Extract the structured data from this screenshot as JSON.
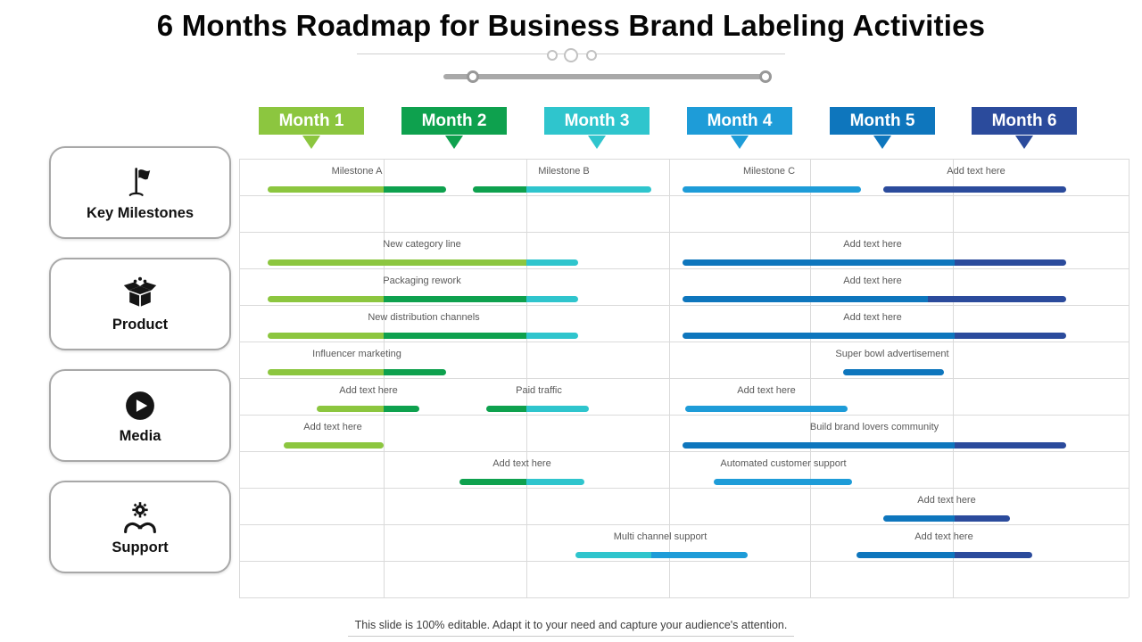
{
  "title": "6 Months Roadmap for Business Brand Labeling Activities",
  "footer": "This slide is 100% editable. Adapt it to your need and capture your audience's attention.",
  "colors": {
    "m1": "#8CC63F",
    "m2": "#0EA14E",
    "m3": "#2FC5CD",
    "m4": "#1E9CD8",
    "m5": "#0E76BD",
    "m6": "#2B4B9C",
    "grid": "#DADADA",
    "label": "#595959"
  },
  "months": [
    {
      "label": "Month 1",
      "color": "m1"
    },
    {
      "label": "Month 2",
      "color": "m2"
    },
    {
      "label": "Month 3",
      "color": "m3"
    },
    {
      "label": "Month 4",
      "color": "m4"
    },
    {
      "label": "Month 5",
      "color": "m5"
    },
    {
      "label": "Month 6",
      "color": "m6"
    }
  ],
  "categories": [
    {
      "label": "Key Milestones",
      "icon": "flag-icon"
    },
    {
      "label": "Product",
      "icon": "box-icon"
    },
    {
      "label": "Media",
      "icon": "play-icon"
    },
    {
      "label": "Support",
      "icon": "support-icon"
    }
  ],
  "rows": [
    {
      "row": 1,
      "bars": [
        {
          "label": "Milestone A",
          "label_x": 400,
          "segments": [
            [
              "m1",
              300,
              430
            ],
            [
              "m2",
              430,
              500
            ]
          ]
        },
        {
          "label": "Milestone B",
          "label_x": 632,
          "segments": [
            [
              "m2",
              530,
              590
            ],
            [
              "m3",
              590,
              730
            ]
          ]
        },
        {
          "label": "Milestone C",
          "label_x": 862,
          "segments": [
            [
              "m4",
              765,
              965
            ]
          ]
        },
        {
          "label": "Add text here",
          "label_x": 1094,
          "segments": [
            [
              "m6",
              990,
              1195
            ]
          ]
        }
      ]
    },
    {
      "row": 3,
      "bars": [
        {
          "label": "New category line",
          "label_x": 473,
          "segments": [
            [
              "m1",
              300,
              590
            ],
            [
              "m3",
              590,
              648
            ]
          ]
        },
        {
          "label": "Add text here",
          "label_x": 978,
          "segments": [
            [
              "m5",
              765,
              1070
            ],
            [
              "m6",
              1070,
              1195
            ]
          ]
        }
      ]
    },
    {
      "row": 4,
      "bars": [
        {
          "label": "Packaging rework",
          "label_x": 473,
          "segments": [
            [
              "m1",
              300,
              430
            ],
            [
              "m2",
              430,
              590
            ],
            [
              "m3",
              590,
              648
            ]
          ]
        },
        {
          "label": "Add text here",
          "label_x": 978,
          "segments": [
            [
              "m5",
              765,
              1040
            ],
            [
              "m6",
              1040,
              1195
            ]
          ]
        }
      ]
    },
    {
      "row": 5,
      "bars": [
        {
          "label": "New distribution channels",
          "label_x": 475,
          "segments": [
            [
              "m1",
              300,
              430
            ],
            [
              "m2",
              430,
              590
            ],
            [
              "m3",
              590,
              648
            ]
          ]
        },
        {
          "label": "Add text here",
          "label_x": 978,
          "segments": [
            [
              "m5",
              765,
              1070
            ],
            [
              "m6",
              1070,
              1195
            ]
          ]
        }
      ]
    },
    {
      "row": 6,
      "bars": [
        {
          "label": "Influencer marketing",
          "label_x": 400,
          "segments": [
            [
              "m1",
              300,
              430
            ],
            [
              "m2",
              430,
              500
            ]
          ]
        },
        {
          "label": "Super bowl advertisement",
          "label_x": 1000,
          "segments": [
            [
              "m5",
              945,
              1058
            ]
          ]
        }
      ]
    },
    {
      "row": 7,
      "bars": [
        {
          "label": "Add text here",
          "label_x": 413,
          "segments": [
            [
              "m1",
              355,
              430
            ],
            [
              "m2",
              430,
              470
            ]
          ]
        },
        {
          "label": "Paid traffic",
          "label_x": 604,
          "segments": [
            [
              "m2",
              545,
              590
            ],
            [
              "m3",
              590,
              660
            ]
          ]
        },
        {
          "label": "Add text here",
          "label_x": 859,
          "segments": [
            [
              "m4",
              768,
              950
            ]
          ]
        }
      ]
    },
    {
      "row": 8,
      "bars": [
        {
          "label": "Add text here",
          "label_x": 373,
          "segments": [
            [
              "m1",
              318,
              430
            ]
          ]
        },
        {
          "label": "Build brand lovers community",
          "label_x": 980,
          "segments": [
            [
              "m5",
              765,
              1070
            ],
            [
              "m6",
              1070,
              1195
            ]
          ]
        }
      ]
    },
    {
      "row": 9,
      "bars": [
        {
          "label": "Add text here",
          "label_x": 585,
          "segments": [
            [
              "m2",
              515,
              590
            ],
            [
              "m3",
              590,
              655
            ]
          ]
        },
        {
          "label": "Automated customer support",
          "label_x": 878,
          "segments": [
            [
              "m4",
              800,
              955
            ]
          ]
        }
      ]
    },
    {
      "row": 10,
      "bars": [
        {
          "label": "Add text here",
          "label_x": 1061,
          "segments": [
            [
              "m5",
              990,
              1070
            ],
            [
              "m6",
              1070,
              1132
            ]
          ]
        }
      ]
    },
    {
      "row": 11,
      "bars": [
        {
          "label": "Multi channel support",
          "label_x": 740,
          "segments": [
            [
              "m3",
              645,
              730
            ],
            [
              "m4",
              730,
              838
            ]
          ]
        },
        {
          "label": "Add text here",
          "label_x": 1058,
          "segments": [
            [
              "m5",
              960,
              1070
            ],
            [
              "m6",
              1070,
              1157
            ]
          ]
        }
      ]
    }
  ]
}
